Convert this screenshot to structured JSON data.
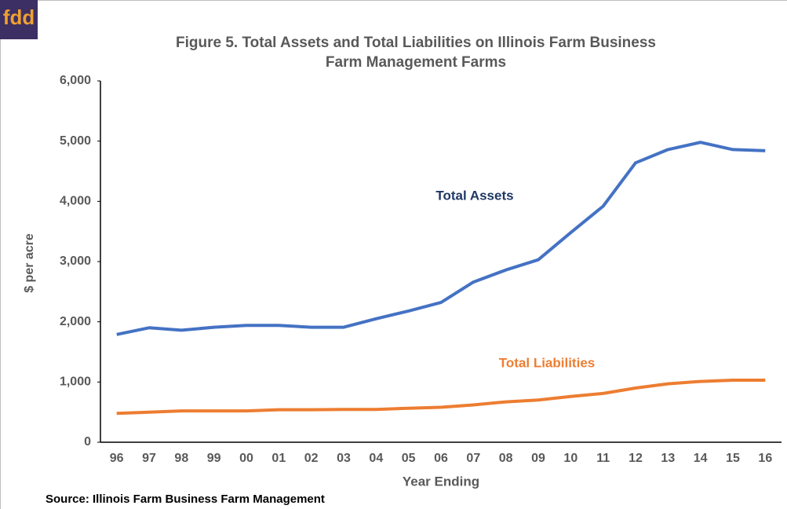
{
  "logo": "fdd",
  "chart_data": {
    "type": "line",
    "title": "Figure 5.  Total Assets and Total Liabilities on Illinois Farm Business",
    "subtitle": "Farm Management Farms",
    "y_label": "$ per acre",
    "x_label": "Year Ending",
    "source": "Source:  Illinois Farm Business Farm Management",
    "categories": [
      "96",
      "97",
      "98",
      "99",
      "00",
      "01",
      "02",
      "03",
      "04",
      "05",
      "06",
      "07",
      "08",
      "09",
      "10",
      "11",
      "12",
      "13",
      "14",
      "15",
      "16"
    ],
    "series": [
      {
        "name": "Total Assets",
        "color": "#4472c4",
        "label_color": "#1f3864",
        "values": [
          1790,
          1900,
          1860,
          1910,
          1940,
          1940,
          1910,
          1910,
          2050,
          2180,
          2320,
          2660,
          2860,
          3030,
          3480,
          3920,
          4640,
          4860,
          4980,
          4860,
          4840
        ]
      },
      {
        "name": "Total Liabilities",
        "color": "#ed7d31",
        "label_color": "#ed7d31",
        "values": [
          480,
          500,
          520,
          520,
          520,
          540,
          540,
          545,
          545,
          565,
          580,
          620,
          670,
          700,
          760,
          810,
          900,
          970,
          1010,
          1030,
          1030
        ]
      }
    ],
    "ylim": [
      0,
      6000
    ],
    "yticks": [
      0,
      {
        "value": 1000,
        "label": "1,000"
      },
      {
        "value": 2000,
        "label": "2,000"
      },
      {
        "value": 3000,
        "label": "3,000"
      },
      {
        "value": 4000,
        "label": "4,000"
      },
      {
        "value": 5000,
        "label": "5,000"
      },
      {
        "value": 6000,
        "label": "6,000"
      }
    ],
    "grid": false
  }
}
